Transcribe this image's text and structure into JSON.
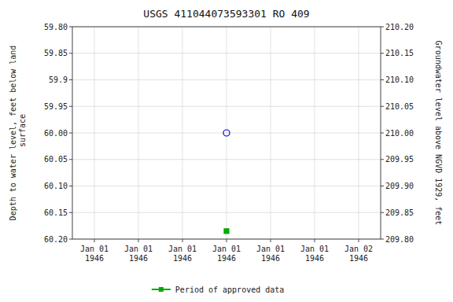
{
  "chart_data": {
    "type": "scatter",
    "title": "USGS 411044073593301 RO 409",
    "ylabel": "Depth to water level, feet below land\n surface",
    "y2label": "Groundwater level above NGVD 1929, feet",
    "categories": [
      "Jan 01\n1946",
      "Jan 01\n1946",
      "Jan 01\n1946",
      "Jan 01\n1946",
      "Jan 01\n1946",
      "Jan 01\n1946",
      "Jan 02\n1946"
    ],
    "series": [
      {
        "color": "#0000cc",
        "marker": "open-circle",
        "values": [
          null,
          null,
          null,
          60.0,
          null,
          null,
          null
        ]
      },
      {
        "name": "Period of approved data",
        "color": "#00aa00",
        "marker": "square",
        "values": [
          null,
          null,
          null,
          60.185,
          null,
          null,
          null
        ]
      }
    ],
    "ylim": [
      60.2,
      59.8
    ],
    "yticks": [
      {
        "value": 59.8,
        "label": "59.80"
      },
      59.85,
      59.9,
      59.95,
      {
        "value": 60.0,
        "label": "60.00"
      },
      60.05,
      {
        "value": 60.1,
        "label": "60.10"
      },
      60.15,
      {
        "value": 60.2,
        "label": "60.20"
      }
    ],
    "y2lim": [
      209.8,
      210.2
    ],
    "y2ticks": [
      {
        "value": 210.2,
        "label": "210.20"
      },
      210.15,
      {
        "value": 210.1,
        "label": "210.10"
      },
      210.05,
      {
        "value": 210.0,
        "label": "210.00"
      },
      209.95,
      {
        "value": 209.9,
        "label": "209.90"
      },
      209.85,
      {
        "value": 209.8,
        "label": "209.80"
      }
    ],
    "grid": true,
    "legend": "bottom"
  }
}
